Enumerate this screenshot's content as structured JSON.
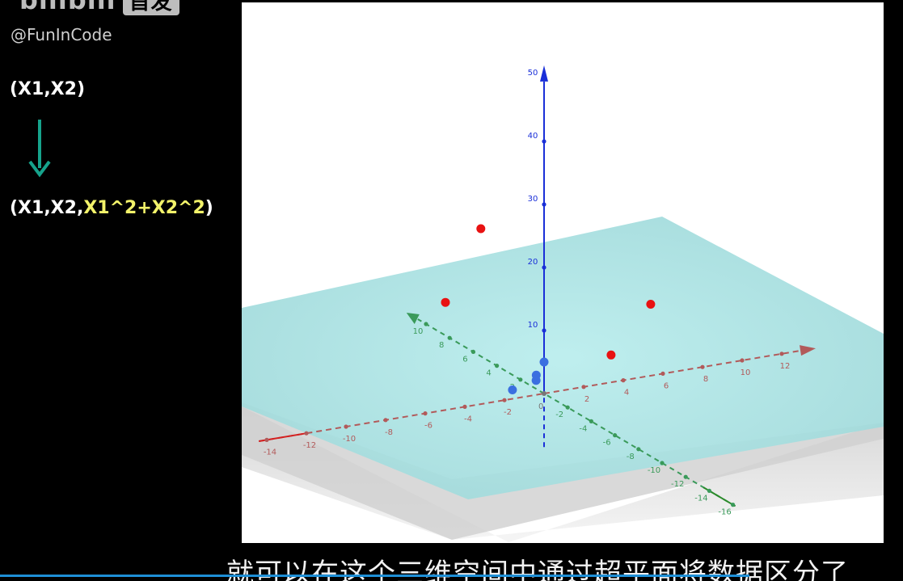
{
  "watermark": {
    "logo_text": "bilibili",
    "logo_box_text": "首发",
    "author": "@FunInCode"
  },
  "left_panel": {
    "formula_input": "(X1,X2)",
    "formula_output_prefix": "(X1,X2,",
    "formula_output_highlight": "X1^2+X2^2",
    "formula_output_suffix": ")",
    "arrow_color": "#16a38c",
    "highlight_color": "#f3f36a"
  },
  "plot": {
    "z_ticks": [
      "10",
      "20",
      "30",
      "40",
      "50"
    ],
    "x_ticks_pos": [
      "2",
      "4",
      "6",
      "8",
      "10",
      "12"
    ],
    "x_ticks_neg": [
      "-2",
      "-4",
      "-6",
      "-8",
      "-10",
      "-12",
      "-14"
    ],
    "y_ticks_pos": [
      "2",
      "4",
      "6",
      "8",
      "10"
    ],
    "y_ticks_neg": [
      "-2",
      "-4",
      "-6",
      "-8",
      "-10",
      "-12",
      "-14",
      "-16"
    ],
    "origin_label": "0",
    "colors": {
      "plane": "#a9e4e4",
      "plane_shadow": "#c8c8c8",
      "x_axis": "#b25a5a",
      "x_axis_neg": "#d42020",
      "y_axis": "#3a9a5a",
      "y_axis_neg": "#2a8a2a",
      "z_axis": "#1a2fd8",
      "red_points": "#e81212",
      "blue_points": "#3a6fe0"
    }
  },
  "subtitle": "就可以在这个三维空间中通过超平面将数据区分了",
  "progress": 0.83
}
